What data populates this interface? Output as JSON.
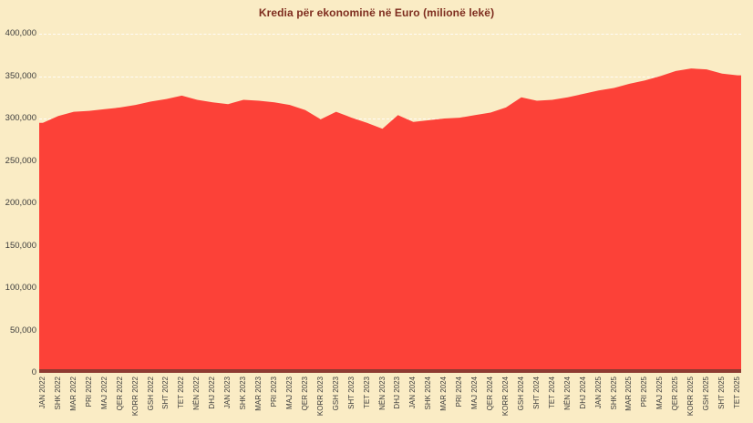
{
  "chart_data": {
    "type": "area",
    "title": "Kredia për ekonominë në Euro (milionë lekë)",
    "xlabel": "",
    "ylabel": "",
    "legend": "none",
    "grid": "horizontal-dashed",
    "ylim": [
      0,
      400000
    ],
    "y_tick_interval": 50000,
    "y_ticks": [
      400000,
      350000,
      300000,
      250000,
      200000,
      150000,
      100000,
      50000,
      0
    ],
    "y_tick_labels": [
      "400,000",
      "350,000",
      "300,000",
      "250,000",
      "200,000",
      "150,000",
      "100,000",
      "50,000",
      "0"
    ],
    "categories": [
      "JAN 2022",
      "SHK 2022",
      "MAR 2022",
      "PRI 2022",
      "MAJ 2022",
      "QER 2022",
      "KORR 2022",
      "GSH 2022",
      "SHT 2022",
      "TET 2022",
      "NËN 2022",
      "DHJ 2022",
      "JAN 2023",
      "SHK 2023",
      "MAR 2023",
      "PRI 2023",
      "MAJ 2023",
      "QER 2023",
      "KORR 2023",
      "GSH 2023",
      "SHT 2023",
      "TET 2023",
      "NËN 2023",
      "DHJ 2023",
      "JAN 2024",
      "SHK 2024",
      "MAR 2024",
      "PRI 2024",
      "MAJ 2024",
      "QER 2024",
      "KORR 2024",
      "GSH 2024",
      "SHT 2024",
      "TET 2024",
      "NËN 2024",
      "DHJ 2024",
      "JAN 2025",
      "SHK 2025",
      "MAR 2025",
      "PRI 2025",
      "MAJ 2025",
      "QER 2025",
      "KORR 2025",
      "GSH 2025",
      "SHT 2025",
      "TET 2025"
    ],
    "values": [
      295000,
      303000,
      308000,
      309000,
      311000,
      313000,
      316000,
      320000,
      323000,
      327000,
      322000,
      319000,
      317000,
      322000,
      321000,
      319000,
      316000,
      310000,
      299000,
      308000,
      301000,
      295000,
      288000,
      304000,
      296000,
      298000,
      300000,
      301000,
      304000,
      307000,
      313000,
      325000,
      321000,
      322000,
      325000,
      329000,
      333000,
      336000,
      341000,
      345000,
      350000,
      356000,
      359000,
      358000,
      353000,
      351000
    ]
  },
  "colors": {
    "background": "#faecc5",
    "area_fill": "#fc4138",
    "title_text": "#7e2d1f",
    "axis_line": "#8e3a31",
    "tick_text": "#3d3d3d",
    "gridline": "rgba(255,255,255,0.85)"
  }
}
